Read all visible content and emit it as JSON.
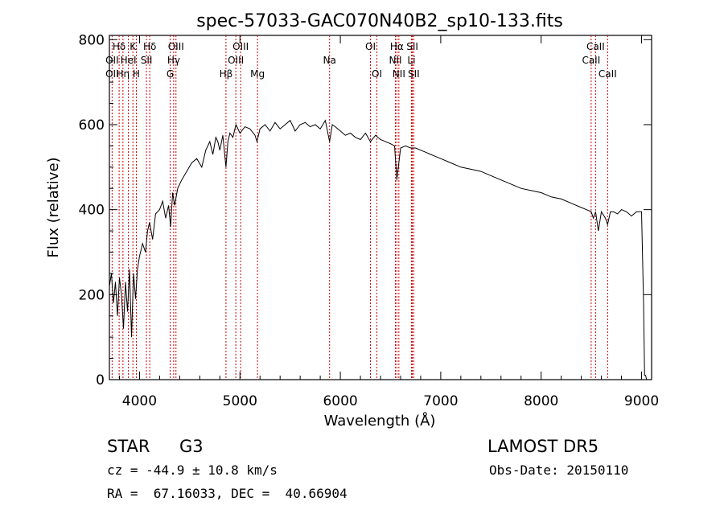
{
  "chart_data": {
    "type": "line",
    "title": "spec-57033-GAC070N40B2_sp10-133.fits",
    "xlabel": "Wavelength (Å)",
    "ylabel": "Flux (relative)",
    "xlim": [
      3700,
      9100
    ],
    "ylim": [
      0,
      810
    ],
    "xticks": [
      4000,
      5000,
      6000,
      7000,
      8000,
      9000
    ],
    "yticks": [
      0,
      200,
      400,
      600,
      800
    ],
    "grid": false,
    "series": [
      {
        "x": [
          3700,
          3720,
          3740,
          3760,
          3780,
          3800,
          3820,
          3840,
          3860,
          3880,
          3900,
          3920,
          3940,
          3960,
          3980,
          4000,
          4030,
          4060,
          4080,
          4100,
          4130,
          4160,
          4200,
          4230,
          4260,
          4290,
          4310,
          4330,
          4350,
          4380,
          4420,
          4470,
          4520,
          4570,
          4620,
          4660,
          4700,
          4730,
          4760,
          4780,
          4800,
          4830,
          4861,
          4880,
          4900,
          4930,
          4960,
          5000,
          5050,
          5100,
          5150,
          5170,
          5200,
          5250,
          5300,
          5350,
          5400,
          5450,
          5500,
          5550,
          5600,
          5650,
          5700,
          5750,
          5800,
          5850,
          5893,
          5920,
          5950,
          6000,
          6050,
          6100,
          6150,
          6200,
          6250,
          6300,
          6350,
          6400,
          6450,
          6500,
          6540,
          6563,
          6600,
          6650,
          6700,
          6750,
          6800,
          6850,
          6900,
          6950,
          7000,
          7100,
          7200,
          7300,
          7400,
          7500,
          7600,
          7700,
          7800,
          7900,
          8000,
          8100,
          8200,
          8300,
          8400,
          8450,
          8498,
          8520,
          8542,
          8570,
          8600,
          8640,
          8662,
          8690,
          8720,
          8760,
          8800,
          8850,
          8900,
          8950,
          9000,
          9020,
          9030,
          9040,
          9050
        ],
        "y": [
          220,
          250,
          180,
          230,
          150,
          240,
          200,
          120,
          230,
          160,
          260,
          100,
          250,
          190,
          260,
          290,
          320,
          300,
          350,
          370,
          330,
          390,
          400,
          420,
          380,
          410,
          360,
          440,
          410,
          450,
          470,
          490,
          510,
          520,
          500,
          540,
          560,
          530,
          570,
          560,
          540,
          575,
          500,
          560,
          580,
          570,
          600,
          580,
          595,
          590,
          575,
          560,
          590,
          600,
          585,
          605,
          590,
          600,
          610,
          585,
          600,
          605,
          595,
          600,
          590,
          610,
          560,
          600,
          595,
          585,
          575,
          580,
          570,
          565,
          580,
          560,
          575,
          565,
          560,
          555,
          550,
          470,
          545,
          550,
          545,
          545,
          540,
          535,
          530,
          525,
          520,
          510,
          500,
          495,
          490,
          480,
          470,
          460,
          450,
          445,
          440,
          430,
          425,
          415,
          405,
          400,
          395,
          380,
          395,
          350,
          395,
          380,
          365,
          395,
          395,
          390,
          400,
          395,
          385,
          395,
          395,
          180,
          10,
          10,
          0
        ]
      }
    ],
    "line_labels": [
      {
        "name": "Hδ",
        "wavelength": 3797,
        "row": 1
      },
      {
        "name": "OII",
        "wavelength": 3727,
        "row": 2
      },
      {
        "name": "OII",
        "wavelength": 3727,
        "row": 3
      },
      {
        "name": "Hη",
        "wavelength": 3835,
        "row": 3
      },
      {
        "name": "K",
        "wavelength": 3934,
        "row": 1
      },
      {
        "name": "HeI",
        "wavelength": 3889,
        "row": 2
      },
      {
        "name": "H",
        "wavelength": 3968,
        "row": 3
      },
      {
        "name": "Hδ",
        "wavelength": 4102,
        "row": 1
      },
      {
        "name": "SII",
        "wavelength": 4069,
        "row": 2
      },
      {
        "name": "OIII",
        "wavelength": 4363,
        "row": 1
      },
      {
        "name": "Hγ",
        "wavelength": 4340,
        "row": 2
      },
      {
        "name": "G",
        "wavelength": 4305,
        "row": 3
      },
      {
        "name": "OIII",
        "wavelength": 5007,
        "row": 1
      },
      {
        "name": "OIII",
        "wavelength": 4959,
        "row": 2
      },
      {
        "name": "Hβ",
        "wavelength": 4861,
        "row": 3
      },
      {
        "name": "Mg",
        "wavelength": 5175,
        "row": 3
      },
      {
        "name": "Na",
        "wavelength": 5893,
        "row": 2
      },
      {
        "name": "OI",
        "wavelength": 6300,
        "row": 1
      },
      {
        "name": "OI",
        "wavelength": 6364,
        "row": 3
      },
      {
        "name": "Hα",
        "wavelength": 6563,
        "row": 1
      },
      {
        "name": "SII",
        "wavelength": 6717,
        "row": 1
      },
      {
        "name": "NII",
        "wavelength": 6548,
        "row": 2
      },
      {
        "name": "Li",
        "wavelength": 6708,
        "row": 2
      },
      {
        "name": "NII",
        "wavelength": 6583,
        "row": 3
      },
      {
        "name": "SII",
        "wavelength": 6731,
        "row": 3
      },
      {
        "name": "CaII",
        "wavelength": 8542,
        "row": 1
      },
      {
        "name": "CaII",
        "wavelength": 8498,
        "row": 2
      },
      {
        "name": "CaII",
        "wavelength": 8662,
        "row": 3
      }
    ],
    "line_color": "#cc0000"
  },
  "info": {
    "object_class": "STAR",
    "subclass": "G3",
    "survey": "LAMOST DR5",
    "velocity": "cz = -44.9 ± 10.8 km/s",
    "obs_date": "Obs-Date: 20150110",
    "coords": "RA =  67.16033, DEC =  40.66904"
  }
}
